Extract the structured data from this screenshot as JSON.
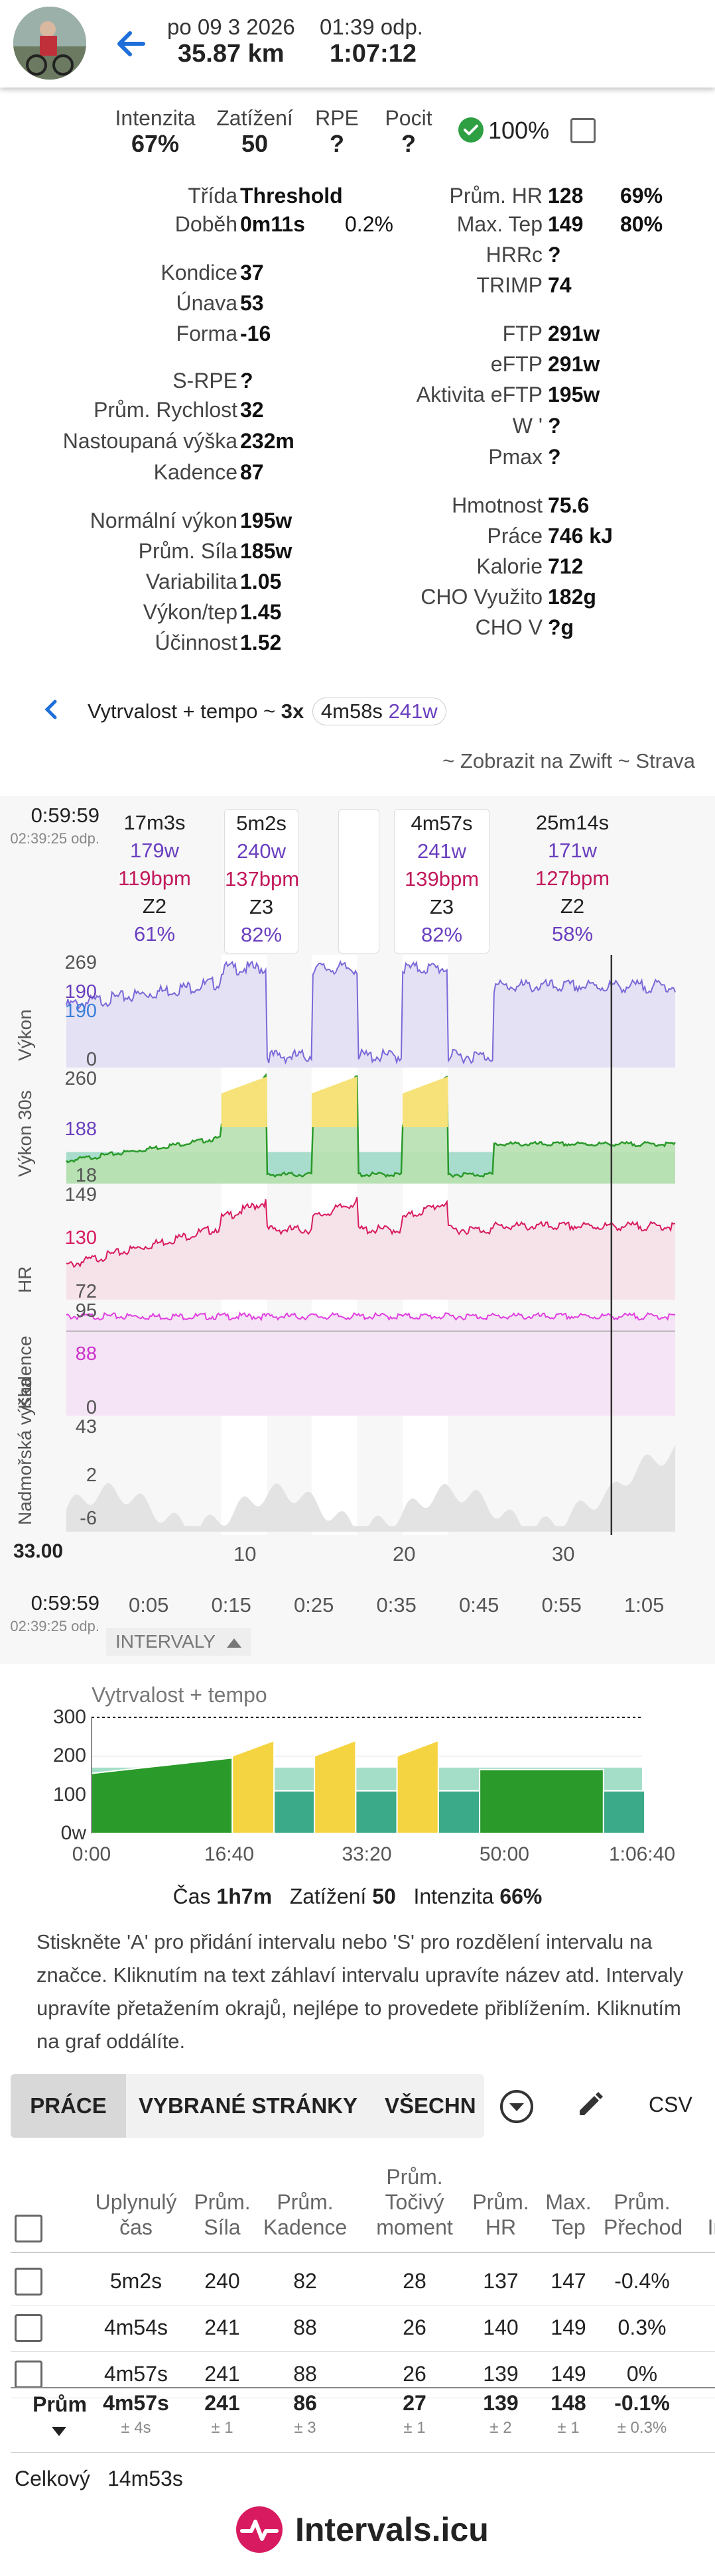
{
  "header": {
    "date": "po 09 3 2026",
    "time": "01:39 odp.",
    "distance": "35.87 km",
    "duration": "1:07:12"
  },
  "top_stats": [
    {
      "label": "Intenzita",
      "value": "67%"
    },
    {
      "label": "Zatížení",
      "value": "50"
    },
    {
      "label": "RPE",
      "value": "?"
    },
    {
      "label": "Pocit",
      "value": "?"
    }
  ],
  "feel_pct": "100%",
  "left_stats": [
    {
      "label": "Třída",
      "value": "Threshold",
      "extra": ""
    },
    {
      "label": "Doběh",
      "value": "0m11s",
      "extra": "0.2%"
    },
    {
      "label": "Kondice",
      "value": "37",
      "extra": ""
    },
    {
      "label": "Únava",
      "value": "53",
      "extra": ""
    },
    {
      "label": "Forma",
      "value": "-16",
      "extra": ""
    },
    {
      "label": "S-RPE",
      "value": "?",
      "extra": ""
    },
    {
      "label": "Prům. Rychlost",
      "value": "32",
      "extra": ""
    },
    {
      "label": "Nastoupaná výška",
      "value": "232m",
      "extra": ""
    },
    {
      "label": "Kadence",
      "value": "87",
      "extra": ""
    },
    {
      "label": "Normální výkon",
      "value": "195w",
      "extra": ""
    },
    {
      "label": "Prům. Síla",
      "value": "185w",
      "extra": ""
    },
    {
      "label": "Variabilita",
      "value": "1.05",
      "extra": ""
    },
    {
      "label": "Výkon/tep",
      "value": "1.45",
      "extra": ""
    },
    {
      "label": "Účinnost",
      "value": "1.52",
      "extra": ""
    }
  ],
  "right_stats": [
    {
      "label": "Prům. HR",
      "value": "128",
      "extra": "69%"
    },
    {
      "label": "Max. Tep",
      "value": "149",
      "extra": "80%"
    },
    {
      "label": "HRRc",
      "value": "?",
      "extra": ""
    },
    {
      "label": "TRIMP",
      "value": "74",
      "extra": ""
    },
    {
      "label": "FTP",
      "value": "291w",
      "extra": ""
    },
    {
      "label": "eFTP",
      "value": "291w",
      "extra": ""
    },
    {
      "label": "Aktivita eFTP",
      "value": "195w",
      "extra": ""
    },
    {
      "label": "W '",
      "value": "?",
      "extra": ""
    },
    {
      "label": "Pmax",
      "value": "?",
      "extra": ""
    },
    {
      "label": "Hmotnost",
      "value": "75.6",
      "extra": ""
    },
    {
      "label": "Práce",
      "value": "746 kJ",
      "extra": ""
    },
    {
      "label": "Kalorie",
      "value": "712",
      "extra": ""
    },
    {
      "label": "CHO Využito",
      "value": "182g",
      "extra": ""
    },
    {
      "label": "CHO V",
      "value": "?g",
      "extra": ""
    }
  ],
  "workout": {
    "text": "Vytrvalost + tempo ~",
    "reps": "3x",
    "dur": "4m58s",
    "power": "241w"
  },
  "links": {
    "prefix": "~ Zobrazit na",
    "zwift": "Zwift",
    "sep": "~",
    "strava": "Strava"
  },
  "chart": {
    "cursor_time": "0:59:59",
    "cursor_clock": "02:39:25 odp.",
    "bottom_time": "0:59:59",
    "bottom_clock": "02:39:25 odp.",
    "distance_readout": "33.00",
    "interval_boxes": [
      {
        "dur": "17m3s",
        "power": "179w",
        "hr": "119bpm",
        "zone": "Z2",
        "pct": "61%"
      },
      {
        "dur": "5m2s",
        "power": "240w",
        "hr": "137bpm",
        "zone": "Z3",
        "pct": "82%"
      },
      {
        "dur": "",
        "power": "",
        "hr": "",
        "zone": "",
        "pct": ""
      },
      {
        "dur": "4m57s",
        "power": "241w",
        "hr": "139bpm",
        "zone": "Z3",
        "pct": "82%"
      },
      {
        "dur": "25m14s",
        "power": "171w",
        "hr": "127bpm",
        "zone": "Z2",
        "pct": "58%"
      }
    ],
    "panels": [
      {
        "name": "Výkon",
        "ticks": [
          "269",
          "190",
          "190",
          "0"
        ],
        "tick_colors": [
          "#555",
          "#6a3fbf",
          "#3a7fd8",
          "#555"
        ],
        "color": "#7b68d8"
      },
      {
        "name": "Výkon 30s",
        "ticks": [
          "260",
          "188",
          "18"
        ],
        "tick_colors": [
          "#555",
          "#6a3fbf",
          "#555"
        ],
        "color": "#2a9a2a"
      },
      {
        "name": "HR",
        "ticks": [
          "149",
          "130",
          "72"
        ],
        "tick_colors": [
          "#555",
          "#d81b60",
          "#555"
        ],
        "color": "#d81b60"
      },
      {
        "name": "Kadence",
        "ticks": [
          "95",
          "88",
          "0"
        ],
        "tick_colors": [
          "#555",
          "#cc33cc",
          "#555"
        ],
        "color": "#e040e0"
      },
      {
        "name": "Nadmořská výška",
        "ticks": [
          "43",
          "2",
          "-6"
        ],
        "tick_colors": [
          "#555",
          "#555",
          "#555"
        ],
        "color": "#999"
      }
    ],
    "distance_ticks": [
      "10",
      "20",
      "30"
    ],
    "time_ticks": [
      "0:05",
      "0:15",
      "0:25",
      "0:35",
      "0:45",
      "0:55",
      "1:05"
    ],
    "intervals_toggle": "INTERVALY",
    "colors": {
      "power": "#7b68d8",
      "power30": "#2a9a2a",
      "hr": "#d81b60",
      "cadence": "#e040e0",
      "altitude": "#aaaaaa"
    }
  },
  "chart_data": {
    "type": "area",
    "title": "Vytrvalost + tempo",
    "y_ticks": [
      "300",
      "200",
      "100",
      "0w"
    ],
    "x_ticks": [
      "0:00",
      "16:40",
      "33:20",
      "50:00",
      "1:06:40"
    ],
    "ylim": [
      0,
      300
    ],
    "steps": [
      {
        "start_min": 0,
        "end_min": 17.05,
        "power_from": 155,
        "power_to": 195,
        "color": "#2a9a2a"
      },
      {
        "start_min": 17.05,
        "end_min": 22.1,
        "power_from": 200,
        "power_to": 240,
        "color": "#f5d442"
      },
      {
        "start_min": 22.1,
        "end_min": 27,
        "power_from": 110,
        "power_to": 110,
        "color": "#3aaa88"
      },
      {
        "start_min": 27,
        "end_min": 32,
        "power_from": 200,
        "power_to": 240,
        "color": "#f5d442"
      },
      {
        "start_min": 32,
        "end_min": 37,
        "power_from": 110,
        "power_to": 110,
        "color": "#3aaa88"
      },
      {
        "start_min": 37,
        "end_min": 42,
        "power_from": 200,
        "power_to": 240,
        "color": "#f5d442"
      },
      {
        "start_min": 42,
        "end_min": 47,
        "power_from": 110,
        "power_to": 110,
        "color": "#3aaa88"
      },
      {
        "start_min": 47,
        "end_min": 62,
        "power_from": 165,
        "power_to": 165,
        "color": "#2a9a2a"
      },
      {
        "start_min": 62,
        "end_min": 67,
        "power_from": 110,
        "power_to": 110,
        "color": "#3aaa88"
      }
    ],
    "summary": {
      "time_label": "Čas",
      "time": "1h7m",
      "load_label": "Zatížení",
      "load": "50",
      "int_label": "Intenzita",
      "int": "66%"
    }
  },
  "help_text": "Stiskněte 'A' pro přidání intervalu nebo 'S' pro rozdělení intervalu na značce. Kliknutím na text záhlaví intervalu upravíte název atd. Intervaly upravíte přetažením okrajů, nejlépe to provedete přiblížením. Kliknutím na graf oddálíte.",
  "tabs": {
    "prace": "PRÁCE",
    "vybrane": "VYBRANÉ STRÁNKY",
    "vsechny": "VŠECHN",
    "csv": "CSV"
  },
  "table": {
    "headers": [
      "Uplynulý čas",
      "Prům. Síla",
      "Prům. Kadence",
      "Prům. Točivý moment",
      "Prům. HR",
      "Max. Tep",
      "Prům. Přechod",
      "In"
    ],
    "rows": [
      [
        "5m2s",
        "240",
        "82",
        "28",
        "137",
        "147",
        "-0.4%"
      ],
      [
        "4m54s",
        "241",
        "88",
        "26",
        "140",
        "149",
        "0.3%"
      ],
      [
        "4m57s",
        "241",
        "88",
        "26",
        "139",
        "149",
        "0%"
      ]
    ],
    "avg_label": "Prům",
    "avg": [
      "4m57s",
      "241",
      "86",
      "27",
      "139",
      "148",
      "-0.1%"
    ],
    "avg_dev": [
      "± 4s",
      "± 1",
      "± 3",
      "± 1",
      "± 2",
      "± 1",
      "± 0.3%"
    ],
    "total_label": "Celkový",
    "total": "14m53s"
  },
  "footer": {
    "brand": "Intervals.icu",
    "brand_color": "#d81b60"
  }
}
